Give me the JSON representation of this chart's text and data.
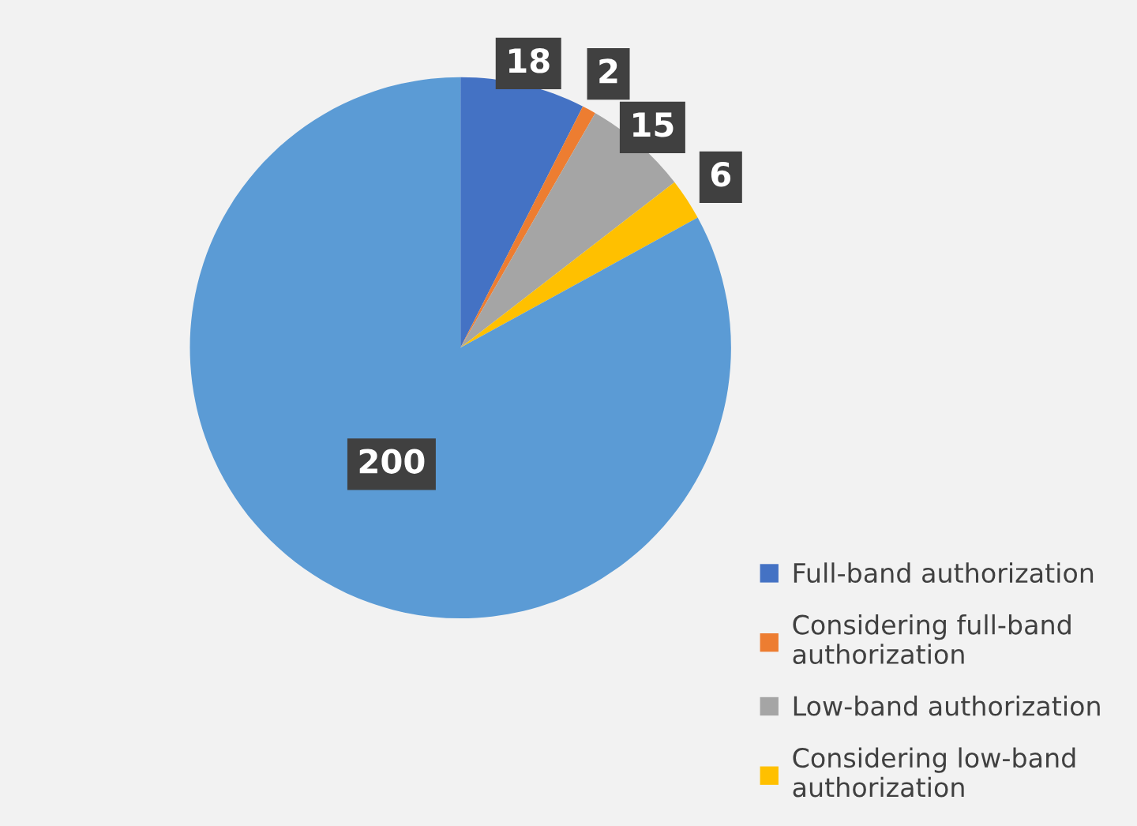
{
  "chart_data": {
    "type": "pie",
    "categories": [
      "Full-band authorization",
      "Considering full-band authorization",
      "Low-band authorization",
      "Considering low-band authorization",
      null
    ],
    "values": [
      18,
      2,
      15,
      6,
      200
    ],
    "colors": [
      "#4472c4",
      "#ed7d31",
      "#a5a5a5",
      "#ffc000",
      "#5b9bd5"
    ],
    "data_labels": true,
    "legend": "bottom right"
  }
}
